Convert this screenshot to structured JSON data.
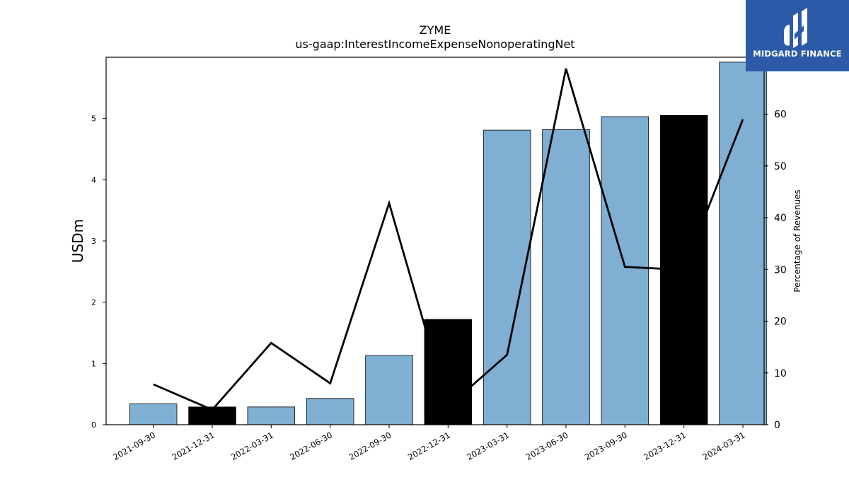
{
  "chart_data": {
    "type": "bar+line",
    "title": "ZYME",
    "subtitle": "us-gaap:InterestIncomeExpenseNonoperatingNet",
    "ylabel_left": "USDm",
    "ylabel_right": "Percentage of Revenues",
    "categories": [
      "2021-09-30",
      "2021-12-31",
      "2022-03-31",
      "2022-06-30",
      "2022-09-30",
      "2022-12-31",
      "2023-03-31",
      "2023-06-30",
      "2023-09-30",
      "2023-12-31",
      "2024-03-31"
    ],
    "bars": {
      "values": [
        0.34,
        0.29,
        0.29,
        0.43,
        1.13,
        1.72,
        4.81,
        4.82,
        5.03,
        5.05,
        5.92
      ],
      "highlight": [
        false,
        true,
        false,
        false,
        false,
        true,
        false,
        false,
        false,
        true,
        false
      ],
      "color": "#7fafd3",
      "highlight_color": "#000000"
    },
    "line": {
      "values": [
        7.8,
        2.9,
        15.8,
        8.0,
        42.8,
        3.5,
        13.5,
        68.8,
        30.5,
        29.9,
        59.0
      ],
      "color": "#000000"
    },
    "ylim_left": [
      0,
      6.0
    ],
    "ylim_right": [
      0,
      71.0
    ],
    "yticks_left": [
      "0",
      "1",
      "2",
      "3",
      "4",
      "5"
    ],
    "yticks_right": [
      "0",
      "10",
      "20",
      "30",
      "40",
      "50",
      "60"
    ],
    "grid": false
  },
  "logo": {
    "text": "MIDGARD FINANCE",
    "bg_color": "#2d5aa8"
  }
}
